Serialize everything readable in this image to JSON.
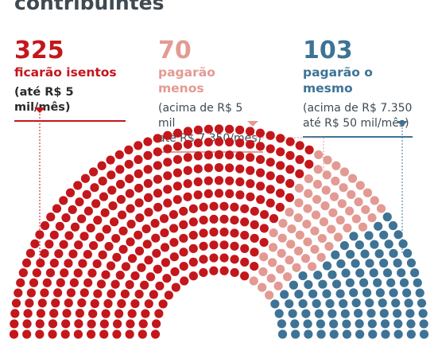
{
  "title_visible": "contribuintes",
  "groups": [
    {
      "count": "325",
      "label": "ficarão isentos",
      "range": "(até R$ 5 mil/mês)",
      "color": "#c3171c"
    },
    {
      "count": "70",
      "label": "pagarão menos",
      "range_line1": "(acima de R$ 5 mil",
      "range_line2": "até R$ 7.350/mês)",
      "color": "#e39a93"
    },
    {
      "count": "103",
      "label": "pagarão o mesmo",
      "range_line1": "(acima de R$ 7.350",
      "range_line2": "até R$ 50 mil/mês)",
      "color": "#3e7396"
    }
  ],
  "chart_data": {
    "type": "parliament",
    "series": [
      {
        "name": "ficarão isentos",
        "value": 325,
        "color": "#c3171c"
      },
      {
        "name": "pagarão menos",
        "value": 70,
        "color": "#e39a93"
      },
      {
        "name": "pagarão o mesmo",
        "value": 103,
        "color": "#3e7396"
      }
    ],
    "total": 498
  }
}
